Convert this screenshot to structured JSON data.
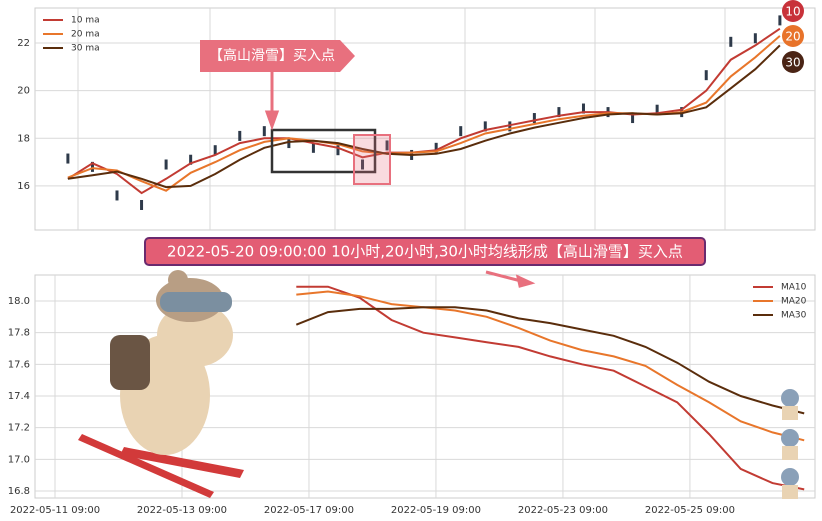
{
  "chart_data": [
    {
      "type": "line",
      "annotation": "【高山滑雪】买入点",
      "badges": [
        "10",
        "20",
        "30"
      ],
      "x": [
        0,
        1,
        2,
        3,
        4,
        5,
        6,
        7,
        8,
        9,
        10,
        11,
        12,
        13,
        14,
        15,
        16,
        17,
        18,
        19,
        20,
        21,
        22,
        23,
        24,
        25,
        26,
        27,
        28,
        29
      ],
      "xlim": [
        -1.34,
        30.43
      ],
      "ylim": [
        14.15,
        23.47
      ],
      "yticks": [
        16,
        18,
        20,
        22
      ],
      "grid": true,
      "legend": "upper left",
      "series": [
        {
          "color": "#2e3a4a",
          "values": [
            17.15,
            16.8,
            15.6,
            15.2,
            16.9,
            17.1,
            17.5,
            18.1,
            18.3,
            17.8,
            17.6,
            17.5,
            16.9,
            17.7,
            17.3,
            17.6,
            18.3,
            18.5,
            18.5,
            18.85,
            19.1,
            19.25,
            19.1,
            18.85,
            19.2,
            19.1,
            20.65,
            22.05,
            22.2,
            22.95
          ]
        },
        {
          "name": "10 ma",
          "color": "#c23b33",
          "values": [
            16.3,
            16.95,
            16.5,
            15.7,
            16.3,
            16.95,
            17.3,
            17.8,
            18.0,
            18.0,
            17.8,
            17.6,
            17.2,
            17.4,
            17.4,
            17.5,
            18.0,
            18.35,
            18.55,
            18.75,
            18.95,
            19.1,
            19.1,
            19.0,
            19.05,
            19.2,
            20.0,
            21.3,
            21.9,
            22.6
          ]
        },
        {
          "name": "20 ma",
          "color": "#e8762b",
          "values": [
            16.35,
            16.75,
            16.65,
            16.2,
            15.8,
            16.55,
            17.0,
            17.5,
            17.85,
            18.0,
            17.9,
            17.75,
            17.45,
            17.35,
            17.4,
            17.45,
            17.8,
            18.2,
            18.4,
            18.6,
            18.8,
            18.95,
            19.05,
            19.05,
            19.0,
            19.1,
            19.5,
            20.6,
            21.4,
            22.3
          ]
        },
        {
          "name": "30 ma",
          "color": "#5a2d0c",
          "values": [
            16.3,
            16.45,
            16.6,
            16.3,
            15.95,
            16.0,
            16.5,
            17.1,
            17.6,
            17.85,
            17.9,
            17.8,
            17.55,
            17.35,
            17.3,
            17.35,
            17.55,
            17.9,
            18.2,
            18.45,
            18.65,
            18.85,
            19.0,
            19.05,
            19.0,
            19.05,
            19.3,
            20.1,
            20.9,
            21.9
          ]
        }
      ]
    },
    {
      "type": "line",
      "annotation": "2022-05-20 09:00:00 10小时,20小时,30小时均线形成【高山滑雪】买入点",
      "x": [
        38,
        43,
        48,
        53,
        58,
        63,
        68,
        73,
        78,
        83,
        88,
        93,
        98,
        103,
        108,
        113,
        118
      ],
      "xlim": [
        -3.15,
        119.7
      ],
      "xticks": [
        {
          "value": 0,
          "label": "2022-05-11 09:00"
        },
        {
          "value": 20,
          "label": "2022-05-13 09:00"
        },
        {
          "value": 40,
          "label": "2022-05-17 09:00"
        },
        {
          "value": 60,
          "label": "2022-05-19 09:00"
        },
        {
          "value": 80,
          "label": "2022-05-23 09:00"
        },
        {
          "value": 100,
          "label": "2022-05-25 09:00"
        }
      ],
      "ylim": [
        16.756,
        18.164
      ],
      "yticks": [
        {
          "value": 16.8,
          "label": "16.8"
        },
        {
          "value": 17,
          "label": "17.0"
        },
        17.2,
        17.4,
        17.6,
        17.8,
        {
          "value": 18,
          "label": "18.0"
        }
      ],
      "grid": true,
      "legend": "upper right",
      "series": [
        {
          "name": "MA10",
          "color": "#c23b33",
          "values": [
            18.09,
            18.09,
            18.02,
            17.88,
            17.8,
            17.77,
            17.74,
            17.71,
            17.65,
            17.6,
            17.56,
            17.46,
            17.36,
            17.16,
            16.94,
            16.85,
            16.81
          ]
        },
        {
          "name": "MA20",
          "color": "#e8762b",
          "values": [
            18.04,
            18.06,
            18.03,
            17.98,
            17.96,
            17.94,
            17.9,
            17.83,
            17.75,
            17.69,
            17.65,
            17.59,
            17.47,
            17.36,
            17.24,
            17.17,
            17.12
          ]
        },
        {
          "name": "MA30",
          "color": "#5a2d0c",
          "values": [
            17.85,
            17.93,
            17.95,
            17.95,
            17.96,
            17.96,
            17.94,
            17.89,
            17.86,
            17.82,
            17.78,
            17.71,
            17.61,
            17.49,
            17.4,
            17.34,
            17.29
          ]
        }
      ]
    }
  ]
}
